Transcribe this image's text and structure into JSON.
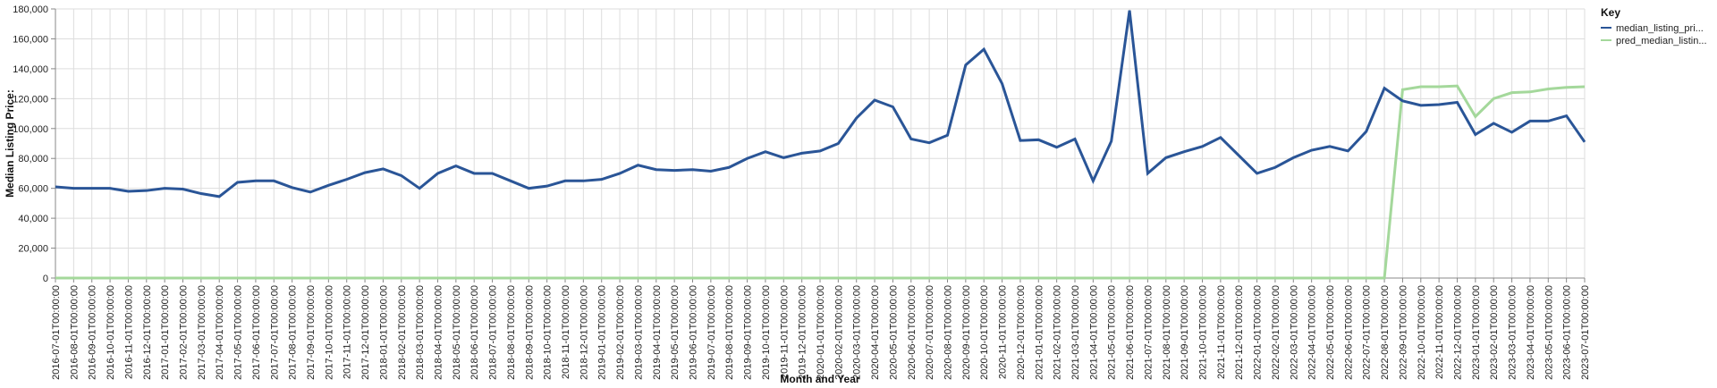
{
  "chart_data": {
    "type": "line",
    "xlabel": "Month and Year",
    "ylabel": "Median Listing Price:",
    "ylim": [
      0,
      180000
    ],
    "yticks": [
      0,
      20000,
      40000,
      60000,
      80000,
      100000,
      120000,
      140000,
      160000,
      180000
    ],
    "ytick_labels": [
      "0",
      "20,000",
      "40,000",
      "60,000",
      "80,000",
      "100,000",
      "120,000",
      "140,000",
      "160,000",
      "180,000"
    ],
    "grid": true,
    "legend": {
      "title": "Key",
      "position": "top-right"
    },
    "x": [
      "2016-07-01T00:00:00",
      "2016-08-01T00:00:00",
      "2016-09-01T00:00:00",
      "2016-10-01T00:00:00",
      "2016-11-01T00:00:00",
      "2016-12-01T00:00:00",
      "2017-01-01T00:00:00",
      "2017-02-01T00:00:00",
      "2017-03-01T00:00:00",
      "2017-04-01T00:00:00",
      "2017-05-01T00:00:00",
      "2017-06-01T00:00:00",
      "2017-07-01T00:00:00",
      "2017-08-01T00:00:00",
      "2017-09-01T00:00:00",
      "2017-10-01T00:00:00",
      "2017-11-01T00:00:00",
      "2017-12-01T00:00:00",
      "2018-01-01T00:00:00",
      "2018-02-01T00:00:00",
      "2018-03-01T00:00:00",
      "2018-04-01T00:00:00",
      "2018-05-01T00:00:00",
      "2018-06-01T00:00:00",
      "2018-07-01T00:00:00",
      "2018-08-01T00:00:00",
      "2018-09-01T00:00:00",
      "2018-10-01T00:00:00",
      "2018-11-01T00:00:00",
      "2018-12-01T00:00:00",
      "2019-01-01T00:00:00",
      "2019-02-01T00:00:00",
      "2019-03-01T00:00:00",
      "2019-04-01T00:00:00",
      "2019-05-01T00:00:00",
      "2019-06-01T00:00:00",
      "2019-07-01T00:00:00",
      "2019-08-01T00:00:00",
      "2019-09-01T00:00:00",
      "2019-10-01T00:00:00",
      "2019-11-01T00:00:00",
      "2019-12-01T00:00:00",
      "2020-01-01T00:00:00",
      "2020-02-01T00:00:00",
      "2020-03-01T00:00:00",
      "2020-04-01T00:00:00",
      "2020-05-01T00:00:00",
      "2020-06-01T00:00:00",
      "2020-07-01T00:00:00",
      "2020-08-01T00:00:00",
      "2020-09-01T00:00:00",
      "2020-10-01T00:00:00",
      "2020-11-01T00:00:00",
      "2020-12-01T00:00:00",
      "2021-01-01T00:00:00",
      "2021-02-01T00:00:00",
      "2021-03-01T00:00:00",
      "2021-04-01T00:00:00",
      "2021-05-01T00:00:00",
      "2021-06-01T00:00:00",
      "2021-07-01T00:00:00",
      "2021-08-01T00:00:00",
      "2021-09-01T00:00:00",
      "2021-10-01T00:00:00",
      "2021-11-01T00:00:00",
      "2021-12-01T00:00:00",
      "2022-01-01T00:00:00",
      "2022-02-01T00:00:00",
      "2022-03-01T00:00:00",
      "2022-04-01T00:00:00",
      "2022-05-01T00:00:00",
      "2022-06-01T00:00:00",
      "2022-07-01T00:00:00",
      "2022-08-01T00:00:00",
      "2022-09-01T00:00:00",
      "2022-10-01T00:00:00",
      "2022-11-01T00:00:00",
      "2022-12-01T00:00:00",
      "2023-01-01T00:00:00",
      "2023-02-01T00:00:00",
      "2023-03-01T00:00:00",
      "2023-04-01T00:00:00",
      "2023-05-01T00:00:00",
      "2023-06-01T00:00:00",
      "2023-07-01T00:00:00"
    ],
    "series": [
      {
        "name": "median_listing_pri...",
        "color": "#2a5597",
        "values": [
          61000,
          60000,
          60000,
          60000,
          58000,
          58500,
          60000,
          59500,
          56500,
          54500,
          64000,
          65000,
          65000,
          60500,
          57500,
          62000,
          66000,
          70500,
          73000,
          68500,
          60000,
          70000,
          75000,
          70000,
          70000,
          65000,
          60000,
          61500,
          65000,
          65000,
          66000,
          70000,
          75500,
          72500,
          72000,
          72500,
          71500,
          74000,
          80000,
          84500,
          80500,
          83500,
          85000,
          90000,
          107000,
          119000,
          114500,
          93000,
          90500,
          95500,
          142500,
          153000,
          130000,
          92000,
          92500,
          87500,
          93000,
          65000,
          91500,
          179000,
          70000,
          80500,
          84500,
          88000,
          94000,
          82000,
          70000,
          74000,
          80500,
          85500,
          88000,
          85000,
          98000,
          127000,
          118500,
          115500,
          116000,
          117500,
          96000,
          103500,
          97500,
          105000,
          105000,
          108500,
          91000
        ]
      },
      {
        "name": "pred_median_listin...",
        "color": "#a4d89b",
        "values": [
          0,
          0,
          0,
          0,
          0,
          0,
          0,
          0,
          0,
          0,
          0,
          0,
          0,
          0,
          0,
          0,
          0,
          0,
          0,
          0,
          0,
          0,
          0,
          0,
          0,
          0,
          0,
          0,
          0,
          0,
          0,
          0,
          0,
          0,
          0,
          0,
          0,
          0,
          0,
          0,
          0,
          0,
          0,
          0,
          0,
          0,
          0,
          0,
          0,
          0,
          0,
          0,
          0,
          0,
          0,
          0,
          0,
          0,
          0,
          0,
          0,
          0,
          0,
          0,
          0,
          0,
          0,
          0,
          0,
          0,
          0,
          0,
          0,
          0,
          126000,
          128000,
          128000,
          128500,
          108000,
          120000,
          124000,
          124500,
          126500,
          127500,
          128000
        ]
      }
    ]
  }
}
